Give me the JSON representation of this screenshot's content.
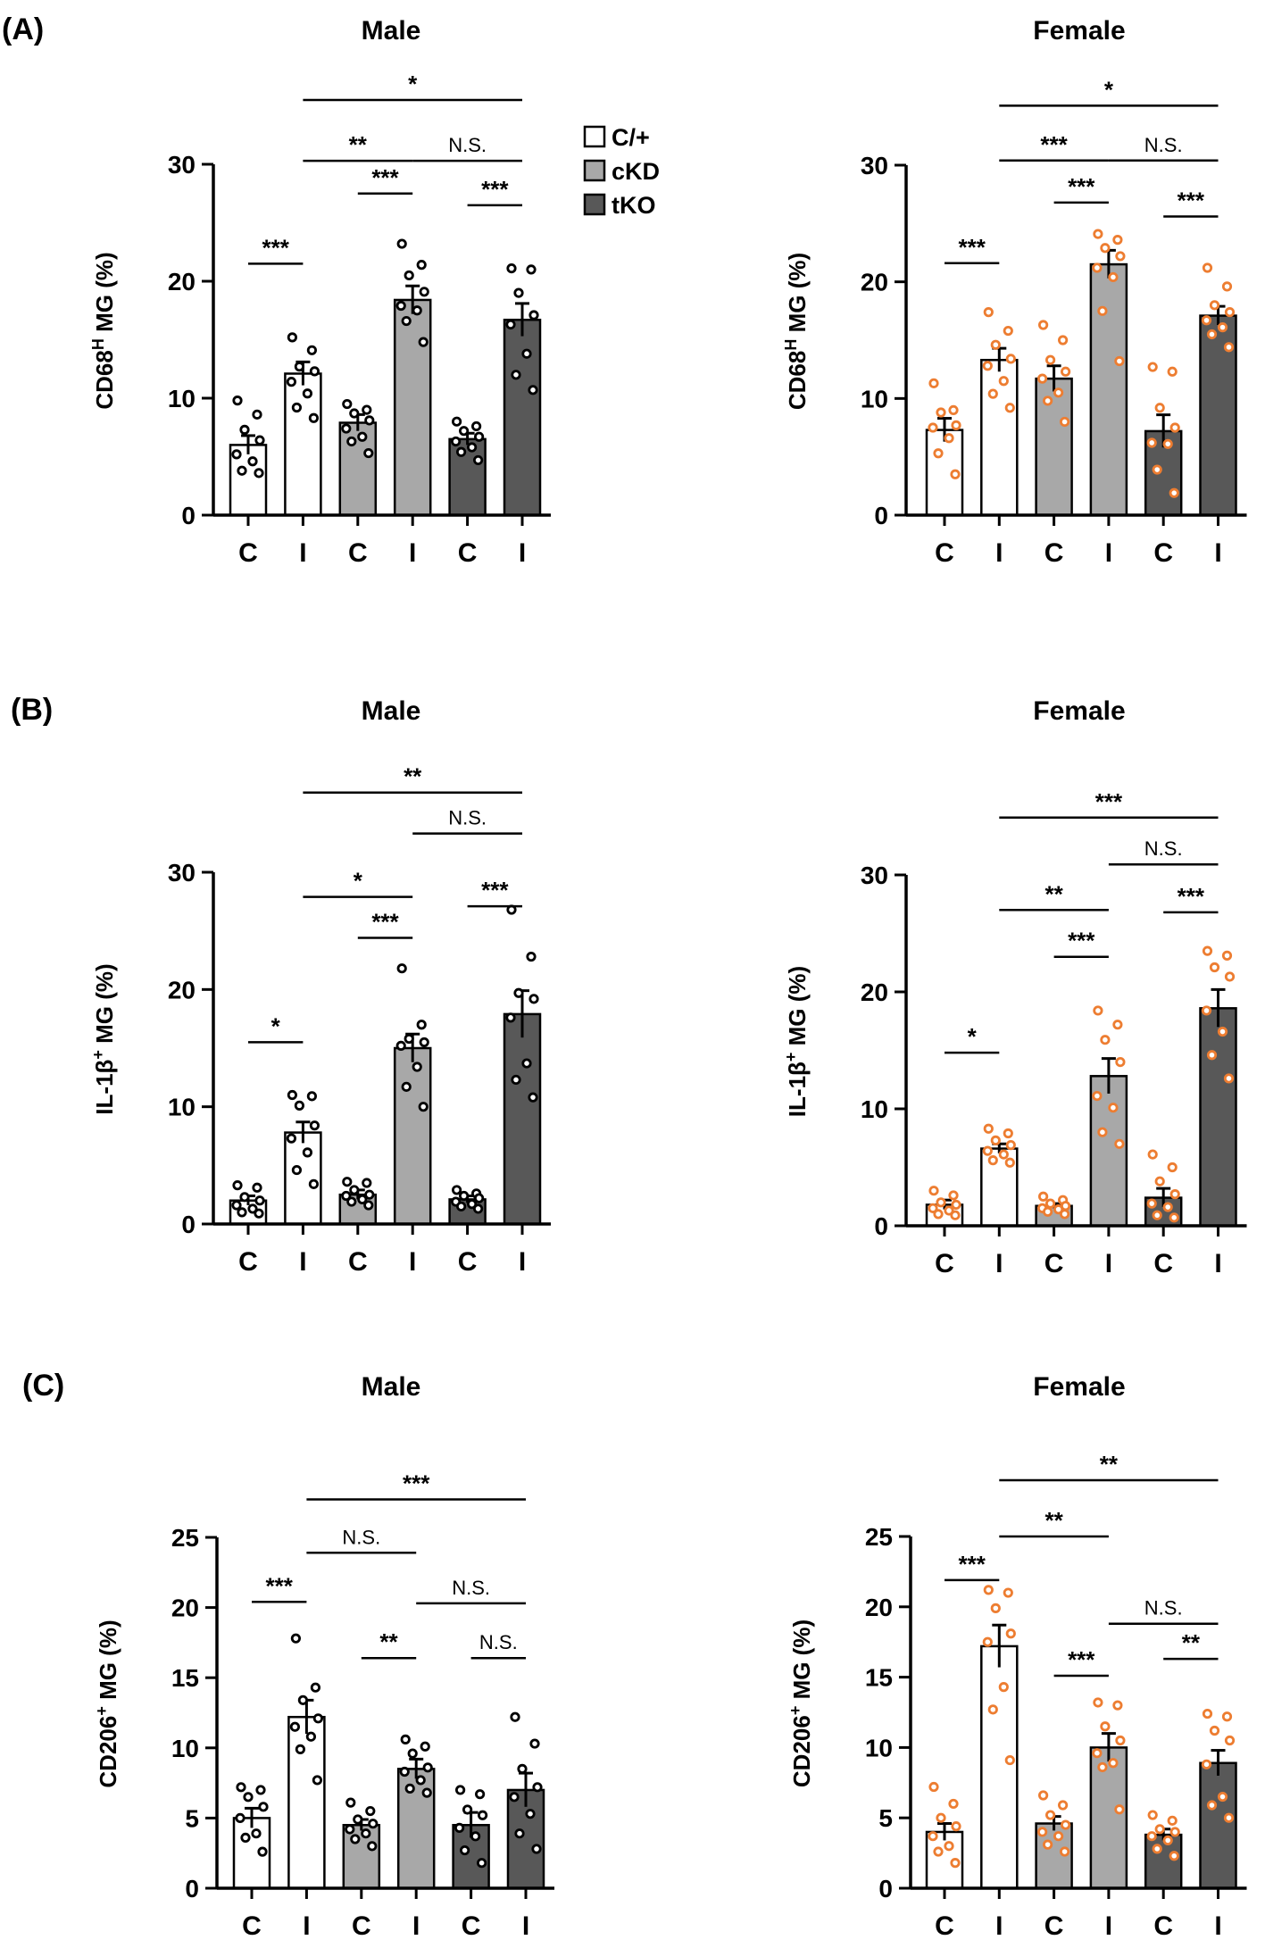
{
  "colors": {
    "c_plus": "#ffffff",
    "ckd": "#a8a8a8",
    "tko": "#585858",
    "male_dot": "#000000",
    "female_dot": "#ed7d31"
  },
  "legend": [
    {
      "label": "C/+",
      "color_key": "c_plus"
    },
    {
      "label": "cKD",
      "color_key": "ckd"
    },
    {
      "label": "tKO",
      "color_key": "tko"
    }
  ],
  "panel_labels": [
    "(A)",
    "(B)",
    "(C)"
  ],
  "chart_data": [
    {
      "type": "bar",
      "panel": "(A)",
      "title": "Male",
      "sex": "male",
      "ylabel": "CD68",
      "ylabel_sup": "H",
      "ylabel_rest": " MG (%)",
      "ylim": [
        0,
        30
      ],
      "yticks": [
        0,
        10,
        20,
        30
      ],
      "categories": [
        "C",
        "I",
        "C",
        "I",
        "C",
        "I"
      ],
      "groups": [
        "c_plus",
        "c_plus",
        "ckd",
        "ckd",
        "tko",
        "tko"
      ],
      "values": [
        6.0,
        12.1,
        7.9,
        18.4,
        6.5,
        16.7
      ],
      "errors": [
        0.8,
        1.0,
        0.7,
        1.2,
        0.5,
        1.4
      ],
      "points": [
        [
          9.8,
          8.6,
          7.3,
          6.4,
          5.2,
          4.6,
          3.8,
          3.6
        ],
        [
          15.2,
          14.1,
          12.7,
          12.3,
          11.4,
          10.4,
          9.2,
          8.3
        ],
        [
          9.5,
          9.0,
          8.7,
          8.1,
          7.4,
          6.7,
          6.3,
          5.3
        ],
        [
          23.2,
          21.4,
          20.5,
          19.1,
          17.9,
          17.5,
          16.6,
          14.8
        ],
        [
          8.0,
          7.6,
          7.2,
          6.7,
          6.3,
          5.8,
          5.4,
          4.7
        ],
        [
          21.1,
          21.0,
          19.0,
          17.1,
          16.3,
          13.8,
          12.0,
          10.7
        ]
      ],
      "brackets": [
        {
          "from": 0,
          "to": 1,
          "level": 21.5,
          "label": "***"
        },
        {
          "from": 2,
          "to": 3,
          "level": 27.5,
          "label": "***"
        },
        {
          "from": 4,
          "to": 5,
          "level": 26.5,
          "label": "***"
        },
        {
          "from": 1,
          "to": 3,
          "level": 30.3,
          "label": "**"
        },
        {
          "from": 3,
          "to": 5,
          "level": 30.3,
          "label": "N.S."
        },
        {
          "from": 1,
          "to": 5,
          "level": 35.5,
          "label": "*"
        }
      ],
      "show_legend": true
    },
    {
      "type": "bar",
      "panel": "",
      "title": "Female",
      "sex": "female",
      "ylabel": "CD68",
      "ylabel_sup": "H",
      "ylabel_rest": " MG (%)",
      "ylim": [
        0,
        30
      ],
      "yticks": [
        0,
        10,
        20,
        30
      ],
      "categories": [
        "C",
        "I",
        "C",
        "I",
        "C",
        "I"
      ],
      "groups": [
        "c_plus",
        "c_plus",
        "ckd",
        "ckd",
        "tko",
        "tko"
      ],
      "values": [
        7.3,
        13.3,
        11.7,
        21.5,
        7.2,
        17.1
      ],
      "errors": [
        1.0,
        1.0,
        1.1,
        1.2,
        1.4,
        0.8
      ],
      "points": [
        [
          11.3,
          9.0,
          8.8,
          7.7,
          7.5,
          6.6,
          5.3,
          3.5
        ],
        [
          17.4,
          15.8,
          14.6,
          13.4,
          12.8,
          11.5,
          10.4,
          9.2
        ],
        [
          16.3,
          15.0,
          13.3,
          12.3,
          11.7,
          10.5,
          9.8,
          8.0
        ],
        [
          24.1,
          23.6,
          22.9,
          22.2,
          21.2,
          20.4,
          17.5,
          13.2
        ],
        [
          12.7,
          12.3,
          9.2,
          7.5,
          6.2,
          6.1,
          3.9,
          1.9
        ],
        [
          21.2,
          19.6,
          18.0,
          17.4,
          16.7,
          16.1,
          15.5,
          14.4
        ]
      ],
      "brackets": [
        {
          "from": 0,
          "to": 1,
          "level": 21.6,
          "label": "***"
        },
        {
          "from": 2,
          "to": 3,
          "level": 26.8,
          "label": "***"
        },
        {
          "from": 4,
          "to": 5,
          "level": 25.6,
          "label": "***"
        },
        {
          "from": 1,
          "to": 3,
          "level": 30.4,
          "label": "***"
        },
        {
          "from": 3,
          "to": 5,
          "level": 30.4,
          "label": "N.S."
        },
        {
          "from": 1,
          "to": 5,
          "level": 35.1,
          "label": "*"
        }
      ],
      "show_legend": false
    },
    {
      "type": "bar",
      "panel": "(B)",
      "title": "Male",
      "sex": "male",
      "ylabel": "IL-1β",
      "ylabel_sup": "+",
      "ylabel_rest": " MG (%)",
      "ylim": [
        0,
        30
      ],
      "yticks": [
        0,
        10,
        20,
        30
      ],
      "categories": [
        "C",
        "I",
        "C",
        "I",
        "C",
        "I"
      ],
      "groups": [
        "c_plus",
        "c_plus",
        "ckd",
        "ckd",
        "tko",
        "tko"
      ],
      "values": [
        2.0,
        7.8,
        2.5,
        15.0,
        2.1,
        17.9
      ],
      "errors": [
        0.4,
        0.9,
        0.4,
        1.2,
        0.3,
        2.0
      ],
      "points": [
        [
          3.3,
          3.1,
          2.3,
          2.0,
          1.6,
          1.3,
          1.0,
          0.9
        ],
        [
          11.0,
          10.9,
          10.1,
          8.4,
          7.3,
          6.1,
          4.6,
          3.4
        ],
        [
          3.6,
          3.5,
          2.9,
          2.5,
          2.4,
          2.1,
          1.9,
          1.6
        ],
        [
          21.8,
          17.0,
          15.8,
          15.5,
          15.2,
          13.4,
          11.7,
          10.0
        ],
        [
          2.9,
          2.6,
          2.4,
          2.2,
          1.9,
          1.7,
          1.5,
          1.3
        ],
        [
          26.8,
          22.8,
          19.7,
          19.2,
          17.6,
          13.7,
          12.3,
          10.8
        ]
      ],
      "brackets": [
        {
          "from": 0,
          "to": 1,
          "level": 15.5,
          "label": "*"
        },
        {
          "from": 2,
          "to": 3,
          "level": 24.4,
          "label": "***"
        },
        {
          "from": 4,
          "to": 5,
          "level": 27.1,
          "label": "***"
        },
        {
          "from": 1,
          "to": 3,
          "level": 27.9,
          "label": "*"
        },
        {
          "from": 3,
          "to": 5,
          "level": 33.3,
          "label": "N.S."
        },
        {
          "from": 1,
          "to": 5,
          "level": 36.8,
          "label": "**"
        }
      ],
      "show_legend": false
    },
    {
      "type": "bar",
      "panel": "",
      "title": "Female",
      "sex": "female",
      "ylabel": "IL-1β",
      "ylabel_sup": "+",
      "ylabel_rest": " MG (%)",
      "ylim": [
        0,
        30
      ],
      "yticks": [
        0,
        10,
        20,
        30
      ],
      "categories": [
        "C",
        "I",
        "C",
        "I",
        "C",
        "I"
      ],
      "groups": [
        "c_plus",
        "c_plus",
        "ckd",
        "ckd",
        "tko",
        "tko"
      ],
      "values": [
        1.8,
        6.6,
        1.7,
        12.8,
        2.4,
        18.6
      ],
      "errors": [
        0.4,
        0.4,
        0.2,
        1.5,
        0.8,
        1.6
      ],
      "points": [
        [
          3.0,
          2.6,
          2.0,
          1.8,
          1.5,
          1.3,
          1.0,
          0.9
        ],
        [
          8.3,
          7.9,
          7.3,
          6.9,
          6.4,
          6.1,
          5.6,
          5.4
        ],
        [
          2.5,
          2.2,
          1.9,
          1.7,
          1.5,
          1.4,
          1.2,
          1.0
        ],
        [
          18.4,
          17.2,
          15.9,
          14.0,
          11.1,
          10.1,
          8.0,
          7.0
        ],
        [
          6.1,
          5.0,
          3.8,
          2.7,
          1.9,
          1.6,
          0.9,
          0.7
        ],
        [
          23.5,
          23.1,
          22.1,
          21.3,
          18.4,
          16.6,
          14.6,
          12.6
        ]
      ],
      "brackets": [
        {
          "from": 0,
          "to": 1,
          "level": 14.8,
          "label": "*"
        },
        {
          "from": 2,
          "to": 3,
          "level": 23.0,
          "label": "***"
        },
        {
          "from": 4,
          "to": 5,
          "level": 26.8,
          "label": "***"
        },
        {
          "from": 1,
          "to": 3,
          "level": 27.0,
          "label": "**"
        },
        {
          "from": 3,
          "to": 5,
          "level": 30.9,
          "label": "N.S."
        },
        {
          "from": 1,
          "to": 5,
          "level": 34.9,
          "label": "***"
        }
      ],
      "show_legend": false
    },
    {
      "type": "bar",
      "panel": "(C)",
      "title": "Male",
      "sex": "male",
      "ylabel": "CD206",
      "ylabel_sup": "+",
      "ylabel_rest": " MG (%)",
      "ylim": [
        0,
        25
      ],
      "yticks": [
        0,
        5,
        10,
        15,
        20,
        25
      ],
      "categories": [
        "C",
        "I",
        "C",
        "I",
        "C",
        "I"
      ],
      "groups": [
        "c_plus",
        "c_plus",
        "ckd",
        "ckd",
        "tko",
        "tko"
      ],
      "values": [
        5.0,
        12.2,
        4.5,
        8.5,
        4.5,
        7.0
      ],
      "errors": [
        0.7,
        1.2,
        0.4,
        0.7,
        0.9,
        1.2
      ],
      "points": [
        [
          7.2,
          7.0,
          6.5,
          5.8,
          5.0,
          3.9,
          3.6,
          2.6
        ],
        [
          17.8,
          14.3,
          13.4,
          12.1,
          11.5,
          10.8,
          9.9,
          7.7
        ],
        [
          6.1,
          5.5,
          4.9,
          4.6,
          4.2,
          3.9,
          3.5,
          3.0
        ],
        [
          10.6,
          10.1,
          9.6,
          8.6,
          8.3,
          7.7,
          7.1,
          6.8
        ],
        [
          7.0,
          6.7,
          5.6,
          5.2,
          4.3,
          3.7,
          2.7,
          1.8
        ],
        [
          12.2,
          10.3,
          8.5,
          7.2,
          6.5,
          5.3,
          3.9,
          2.8
        ]
      ],
      "brackets": [
        {
          "from": 0,
          "to": 1,
          "level": 20.4,
          "label": "***"
        },
        {
          "from": 2,
          "to": 3,
          "level": 16.4,
          "label": "**"
        },
        {
          "from": 4,
          "to": 5,
          "level": 16.4,
          "label": "N.S."
        },
        {
          "from": 1,
          "to": 3,
          "level": 23.9,
          "label": "N.S."
        },
        {
          "from": 3,
          "to": 5,
          "level": 20.3,
          "label": "N.S."
        },
        {
          "from": 1,
          "to": 5,
          "level": 27.7,
          "label": "***"
        }
      ],
      "show_legend": false
    },
    {
      "type": "bar",
      "panel": "",
      "title": "Female",
      "sex": "female",
      "ylabel": "CD206",
      "ylabel_sup": "+",
      "ylabel_rest": " MG (%)",
      "ylim": [
        0,
        25
      ],
      "yticks": [
        0,
        5,
        10,
        15,
        20,
        25
      ],
      "categories": [
        "C",
        "I",
        "C",
        "I",
        "C",
        "I"
      ],
      "groups": [
        "c_plus",
        "c_plus",
        "ckd",
        "ckd",
        "tko",
        "tko"
      ],
      "values": [
        4.0,
        17.2,
        4.6,
        10.0,
        3.8,
        8.9
      ],
      "errors": [
        0.6,
        1.5,
        0.5,
        1.0,
        0.4,
        0.9
      ],
      "points": [
        [
          7.2,
          6.0,
          5.0,
          4.4,
          3.7,
          3.0,
          2.6,
          1.8
        ],
        [
          21.2,
          21.0,
          19.9,
          18.1,
          17.5,
          14.3,
          12.7,
          9.1
        ],
        [
          6.6,
          5.9,
          5.2,
          4.5,
          4.0,
          3.7,
          3.1,
          2.6
        ],
        [
          13.2,
          13.0,
          11.5,
          10.5,
          9.6,
          8.9,
          8.6,
          5.6
        ],
        [
          5.2,
          4.8,
          4.2,
          4.0,
          3.7,
          3.4,
          2.8,
          2.3
        ],
        [
          12.4,
          12.2,
          11.2,
          10.5,
          8.8,
          6.5,
          5.9,
          5.0
        ]
      ],
      "brackets": [
        {
          "from": 0,
          "to": 1,
          "level": 21.9,
          "label": "***"
        },
        {
          "from": 2,
          "to": 3,
          "level": 15.1,
          "label": "***"
        },
        {
          "from": 4,
          "to": 5,
          "level": 16.3,
          "label": "**"
        },
        {
          "from": 1,
          "to": 3,
          "level": 25.0,
          "label": "**"
        },
        {
          "from": 3,
          "to": 5,
          "level": 18.8,
          "label": "N.S."
        },
        {
          "from": 1,
          "to": 5,
          "level": 29.0,
          "label": "**"
        }
      ],
      "show_legend": false
    }
  ]
}
